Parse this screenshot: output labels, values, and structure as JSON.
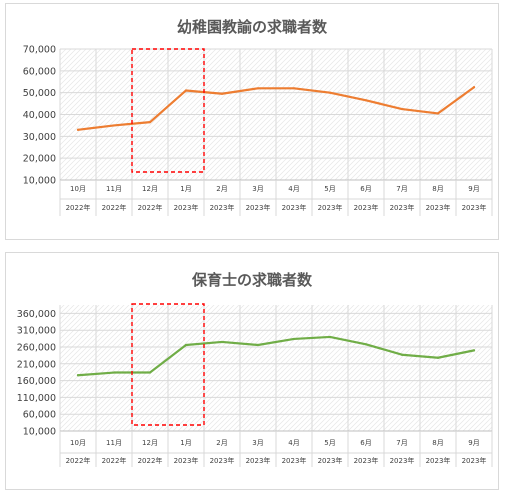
{
  "chart_data": [
    {
      "type": "line",
      "title": "幼稚園教諭の求職者数",
      "categories": [
        "10月",
        "11月",
        "12月",
        "1月",
        "2月",
        "3月",
        "4月",
        "5月",
        "6月",
        "7月",
        "8月",
        "9月"
      ],
      "category_years": [
        "2022年",
        "2022年",
        "2022年",
        "2023年",
        "2023年",
        "2023年",
        "2023年",
        "2023年",
        "2023年",
        "2023年",
        "2023年",
        "2023年"
      ],
      "yticks": [
        "10,000",
        "20,000",
        "30,000",
        "40,000",
        "50,000",
        "60,000",
        "70,000"
      ],
      "ylim": [
        10000,
        70000
      ],
      "series": [
        {
          "values": [
            33000,
            35000,
            36500,
            51000,
            49500,
            52000,
            52000,
            50000,
            46500,
            42500,
            40500,
            52500
          ],
          "color": "#ED7D31"
        }
      ],
      "highlight": {
        "from_category": "12月",
        "to_category": "1月",
        "color": "#FF0000",
        "style": "dashed"
      },
      "grid": true,
      "xlabel": "",
      "ylabel": ""
    },
    {
      "type": "line",
      "title": "保育士の求職者数",
      "categories": [
        "10月",
        "11月",
        "12月",
        "1月",
        "2月",
        "3月",
        "4月",
        "5月",
        "6月",
        "7月",
        "8月",
        "9月"
      ],
      "category_years": [
        "2022年",
        "2022年",
        "2022年",
        "2023年",
        "2023年",
        "2023年",
        "2023年",
        "2023年",
        "2023年",
        "2023年",
        "2023年",
        "2023年"
      ],
      "yticks": [
        "10,000",
        "60,000",
        "110,000",
        "160,000",
        "210,000",
        "260,000",
        "310,000",
        "360,000"
      ],
      "ylim": [
        10000,
        385000
      ],
      "series": [
        {
          "values": [
            176000,
            184000,
            184000,
            266000,
            275000,
            266000,
            284000,
            290000,
            268000,
            237000,
            228000,
            250000
          ],
          "color": "#70AD47"
        }
      ],
      "highlight": {
        "from_category": "12月",
        "to_category": "1月",
        "color": "#FF0000",
        "style": "dashed"
      },
      "grid": true,
      "xlabel": "",
      "ylabel": ""
    }
  ]
}
